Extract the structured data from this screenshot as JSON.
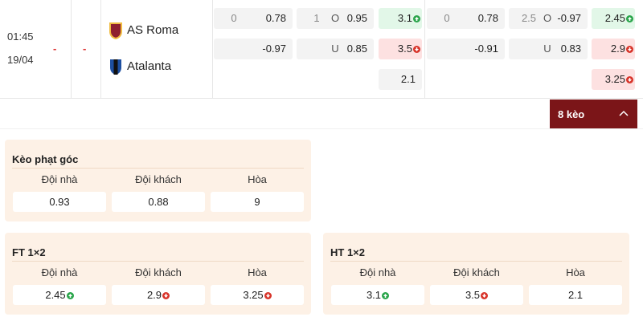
{
  "match": {
    "time": "01:45",
    "date": "19/04",
    "score_home": "-",
    "score_away": "-",
    "home": "AS Roma",
    "away": "Atalanta"
  },
  "odds": [
    [
      {
        "line": "0",
        "price": "0.78"
      },
      {
        "price": "-0.97"
      }
    ],
    [
      {
        "line": "1",
        "side": "O",
        "price": "0.95"
      },
      {
        "side": "U",
        "price": "0.85"
      }
    ],
    [
      {
        "price": "3.1",
        "trend": "up"
      },
      {
        "price": "3.5",
        "trend": "down"
      },
      {
        "price": "2.1"
      }
    ],
    [
      {
        "line": "0",
        "price": "0.78"
      },
      {
        "price": "-0.91"
      }
    ],
    [
      {
        "line": "2.5",
        "side": "O",
        "price": "-0.97"
      },
      {
        "side": "U",
        "price": "0.83"
      }
    ],
    [
      {
        "price": "2.45",
        "trend": "up"
      },
      {
        "price": "2.9",
        "trend": "down"
      },
      {
        "price": "3.25",
        "trend": "down"
      }
    ]
  ],
  "more_button": "8 kèo",
  "panels": [
    {
      "title": "Kèo phạt góc",
      "headers": [
        "Đội nhà",
        "Đội khách",
        "Hòa"
      ],
      "values": [
        {
          "text": "0.93"
        },
        {
          "text": "0.88"
        },
        {
          "text": "9"
        }
      ]
    },
    {
      "title": "FT 1×2",
      "headers": [
        "Đội nhà",
        "Đội khách",
        "Hòa"
      ],
      "values": [
        {
          "text": "2.45",
          "trend": "up"
        },
        {
          "text": "2.9",
          "trend": "down"
        },
        {
          "text": "3.25",
          "trend": "down"
        }
      ]
    },
    {
      "title": "HT 1×2",
      "headers": [
        "Đội nhà",
        "Đội khách",
        "Hòa"
      ],
      "values": [
        {
          "text": "3.1",
          "trend": "up"
        },
        {
          "text": "3.5",
          "trend": "down"
        },
        {
          "text": "2.1"
        }
      ]
    }
  ]
}
